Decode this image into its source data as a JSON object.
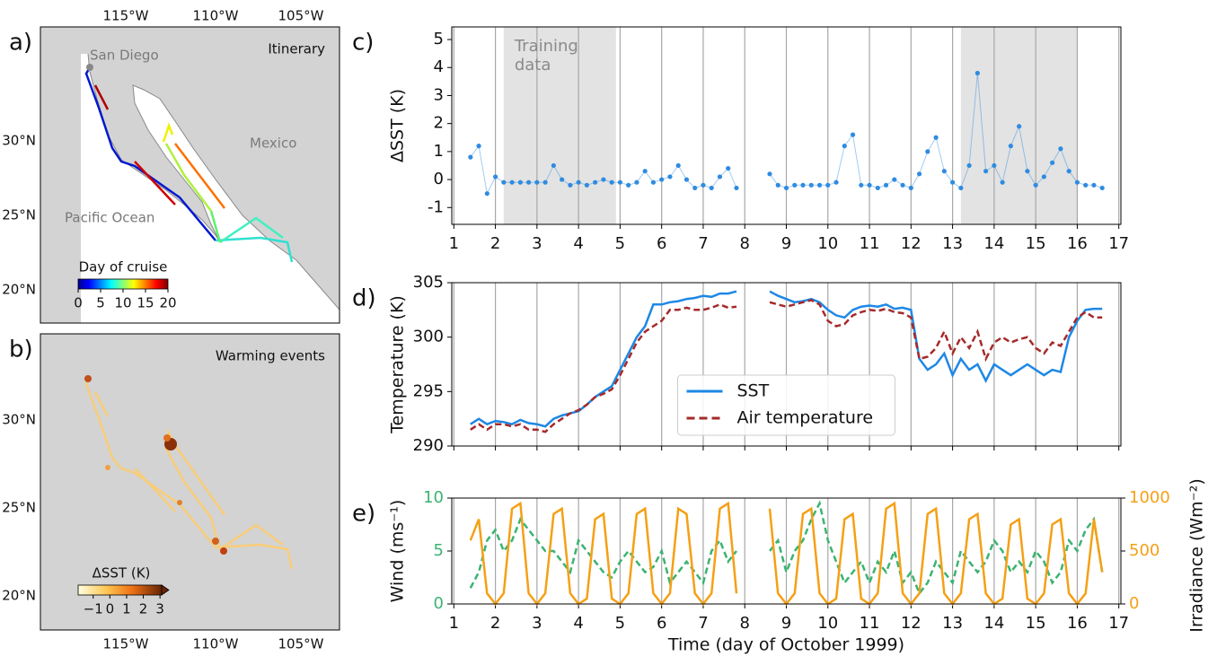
{
  "maps": [
    {
      "panel_label": "a)",
      "title": "Itinerary",
      "places": [
        "San Diego",
        "Mexico",
        "Pacific Ocean"
      ],
      "colorbar_label": "Day of cruise",
      "colorbar_lim": [
        0,
        20
      ],
      "colorbar_ticks": [
        0,
        5,
        10,
        15,
        20
      ],
      "lon_labels": [
        "115°W",
        "110°W",
        "105°W"
      ],
      "lat_labels": [
        "30°N",
        "25°N",
        "20°N"
      ]
    },
    {
      "panel_label": "b)",
      "title": "Warming events",
      "colorbar_label": "ΔSST (K)",
      "colorbar_lim": [
        -1.9,
        3.1
      ],
      "colorbar_ticks": [
        {
          "value": -1,
          "label": "−1"
        },
        0,
        1,
        2,
        3
      ],
      "lon_labels": [
        "115°W",
        "110°W",
        "105°W"
      ],
      "lat_labels": [
        "30°N",
        "25°N",
        "20°N"
      ]
    }
  ],
  "chart_data": [
    {
      "type": "scatter",
      "panel_label": "c)",
      "y_label": "ΔSST (K)",
      "connect": true,
      "grid": "x",
      "show_xtick_labels": true,
      "xlim": [
        0.95,
        17.05
      ],
      "xticks": [
        1,
        2,
        3,
        4,
        5,
        6,
        7,
        8,
        9,
        10,
        11,
        12,
        13,
        14,
        15,
        16,
        17
      ],
      "ylim": [
        -1.6,
        5.45
      ],
      "yticks": [
        -1,
        0,
        1,
        2,
        3,
        4,
        5
      ],
      "shaded_spans": [
        [
          2.2,
          4.9
        ],
        [
          13.2,
          16
        ]
      ],
      "annotation_lines": [
        "Training",
        "data"
      ],
      "x": [
        1.4,
        1.6,
        1.8,
        2.0,
        2.2,
        2.4,
        2.6,
        2.8,
        3.0,
        3.2,
        3.4,
        3.6,
        3.8,
        4.0,
        4.2,
        4.4,
        4.6,
        4.8,
        5.0,
        5.2,
        5.4,
        5.6,
        5.8,
        6.0,
        6.2,
        6.4,
        6.6,
        6.8,
        7.0,
        7.2,
        7.4,
        7.6,
        7.8,
        8.2,
        8.6,
        8.8,
        9.0,
        9.2,
        9.4,
        9.6,
        9.8,
        10.0,
        10.2,
        10.4,
        10.6,
        10.8,
        11.0,
        11.2,
        11.4,
        11.6,
        11.8,
        12.0,
        12.2,
        12.4,
        12.6,
        12.8,
        13.0,
        13.2,
        13.4,
        13.6,
        13.8,
        14.0,
        14.2,
        14.4,
        14.6,
        14.8,
        15.0,
        15.2,
        15.4,
        15.6,
        15.8,
        16.0,
        16.2,
        16.4,
        16.6
      ],
      "series": [
        {
          "name": "ΔSST",
          "color": "#2f8be0",
          "values": [
            0.8,
            1.2,
            -0.5,
            0.1,
            -0.1,
            -0.1,
            -0.1,
            -0.1,
            -0.1,
            -0.1,
            0.5,
            0.0,
            -0.2,
            -0.1,
            -0.2,
            -0.1,
            0.0,
            -0.1,
            -0.1,
            -0.2,
            -0.1,
            0.3,
            -0.1,
            0.0,
            0.1,
            0.5,
            0.0,
            -0.3,
            -0.2,
            -0.3,
            0.1,
            0.4,
            -0.3,
            null,
            0.2,
            -0.2,
            -0.3,
            -0.2,
            -0.2,
            -0.2,
            -0.2,
            -0.2,
            -0.1,
            1.2,
            1.6,
            -0.2,
            -0.2,
            -0.3,
            -0.2,
            0.0,
            -0.2,
            -0.3,
            0.2,
            1.0,
            1.5,
            0.3,
            -0.1,
            -0.3,
            0.5,
            3.8,
            0.3,
            0.5,
            -0.1,
            1.2,
            1.9,
            0.3,
            -0.2,
            0.1,
            0.6,
            1.1,
            0.3,
            -0.1,
            -0.2,
            -0.2,
            -0.3
          ]
        }
      ]
    },
    {
      "type": "line",
      "panel_label": "d)",
      "y_label": "Temperature (K)",
      "grid": "x",
      "show_xtick_labels": false,
      "legend": "lower center",
      "xlim": [
        0.95,
        17.05
      ],
      "xticks": [
        1,
        2,
        3,
        4,
        5,
        6,
        7,
        8,
        9,
        10,
        11,
        12,
        13,
        14,
        15,
        16,
        17
      ],
      "ylim": [
        290,
        305
      ],
      "yticks": [
        290,
        295,
        300,
        305
      ],
      "x": [
        1.4,
        1.6,
        1.8,
        2.0,
        2.2,
        2.4,
        2.6,
        2.8,
        3.0,
        3.2,
        3.4,
        3.6,
        3.8,
        4.0,
        4.2,
        4.4,
        4.6,
        4.8,
        5.0,
        5.2,
        5.4,
        5.6,
        5.8,
        6.0,
        6.2,
        6.4,
        6.6,
        6.8,
        7.0,
        7.2,
        7.4,
        7.6,
        7.8,
        8.2,
        8.6,
        8.8,
        9.0,
        9.2,
        9.4,
        9.6,
        9.8,
        10.0,
        10.2,
        10.4,
        10.6,
        10.8,
        11.0,
        11.2,
        11.4,
        11.6,
        11.8,
        12.0,
        12.2,
        12.4,
        12.6,
        12.8,
        13.0,
        13.2,
        13.4,
        13.6,
        13.8,
        14.0,
        14.2,
        14.4,
        14.6,
        14.8,
        15.0,
        15.2,
        15.4,
        15.6,
        15.8,
        16.0,
        16.2,
        16.4,
        16.6
      ],
      "series": [
        {
          "name": "SST",
          "color": "#1e88e5",
          "dashed": false,
          "values": [
            292,
            292.5,
            292,
            292.3,
            292.2,
            292,
            292.4,
            292.1,
            292,
            291.8,
            292.5,
            292.8,
            293,
            293.2,
            293.8,
            294.5,
            295,
            295.5,
            297,
            298.5,
            300,
            301,
            303,
            303,
            303.2,
            303.3,
            303.5,
            303.6,
            303.8,
            303.7,
            304,
            304,
            304.2,
            null,
            304.2,
            303.8,
            303.5,
            303.2,
            303.3,
            303.5,
            303.2,
            302.5,
            302,
            301.8,
            302.5,
            302.8,
            302.9,
            302.8,
            303,
            302.6,
            302.7,
            302.5,
            298,
            297,
            297.5,
            298.5,
            296.5,
            298,
            297,
            297.5,
            296,
            297.5,
            297,
            296.5,
            297,
            297.5,
            297,
            296.5,
            297,
            296.8,
            300,
            301.5,
            302.5,
            302.6,
            302.6
          ]
        },
        {
          "name": "Air temperature",
          "color": "#a52a2a",
          "dashed": true,
          "values": [
            291.5,
            292,
            291.5,
            292,
            292,
            291.8,
            292,
            291.5,
            291.5,
            291.3,
            292,
            292.5,
            293,
            293.3,
            293.8,
            294.5,
            294.8,
            295.2,
            296.5,
            298,
            299.5,
            300.5,
            301,
            301.5,
            302.5,
            302.5,
            302.7,
            302.5,
            302.5,
            302.7,
            303,
            302.7,
            302.8,
            null,
            303.2,
            303,
            302.8,
            303,
            303.2,
            303.4,
            303,
            301.5,
            301,
            301.2,
            302,
            302.3,
            302.5,
            302.4,
            302.6,
            302.3,
            302.2,
            301.8,
            298,
            298.2,
            299,
            300.5,
            298.5,
            300,
            299,
            300.5,
            298,
            299.5,
            300,
            299.5,
            299.8,
            300,
            299,
            298.5,
            299.5,
            299.2,
            300.5,
            301.8,
            302.3,
            301.8,
            301.8
          ]
        }
      ]
    },
    {
      "type": "line",
      "panel_label": "e)",
      "y_label": "Wind (ms⁻¹)",
      "y2_label": "Irradiance (Wm⁻²)",
      "x_label": "Time (day of October 1999)",
      "grid": "x",
      "show_xtick_labels": true,
      "xlim": [
        0.95,
        17.05
      ],
      "xticks": [
        1,
        2,
        3,
        4,
        5,
        6,
        7,
        8,
        9,
        10,
        11,
        12,
        13,
        14,
        15,
        16,
        17
      ],
      "ylim": [
        0,
        10
      ],
      "yticks": [
        0,
        5,
        10
      ],
      "y2lim": [
        0,
        1000
      ],
      "y2ticks": [
        0,
        500,
        1000
      ],
      "x": [
        1.4,
        1.6,
        1.8,
        2.0,
        2.2,
        2.4,
        2.6,
        2.8,
        3.0,
        3.2,
        3.4,
        3.6,
        3.8,
        4.0,
        4.2,
        4.4,
        4.6,
        4.8,
        5.0,
        5.2,
        5.4,
        5.6,
        5.8,
        6.0,
        6.2,
        6.4,
        6.6,
        6.8,
        7.0,
        7.2,
        7.4,
        7.6,
        7.8,
        8.2,
        8.6,
        8.8,
        9.0,
        9.2,
        9.4,
        9.6,
        9.8,
        10.0,
        10.2,
        10.4,
        10.6,
        10.8,
        11.0,
        11.2,
        11.4,
        11.6,
        11.8,
        12.0,
        12.2,
        12.4,
        12.6,
        12.8,
        13.0,
        13.2,
        13.4,
        13.6,
        13.8,
        14.0,
        14.2,
        14.4,
        14.6,
        14.8,
        15.0,
        15.2,
        15.4,
        15.6,
        15.8,
        16.0,
        16.2,
        16.4,
        16.6
      ],
      "series": [
        {
          "name": "Wind",
          "color": "#3cb371",
          "dashed": true,
          "axis": "y",
          "values": [
            1.5,
            3,
            6,
            7,
            5,
            6,
            8,
            7,
            6,
            5,
            5,
            4,
            3,
            6,
            5,
            4,
            3,
            2.5,
            4,
            5,
            4,
            3,
            3.5,
            5,
            2,
            3,
            4,
            3,
            2,
            5,
            6,
            4,
            5,
            null,
            5,
            6,
            3,
            5,
            6,
            8,
            9.5,
            6,
            4,
            2,
            3,
            4,
            2,
            4,
            3,
            5,
            2,
            3,
            1,
            2,
            4,
            3,
            2,
            5,
            4,
            3,
            4,
            6,
            5,
            3,
            4,
            3,
            5,
            4,
            2,
            3,
            6,
            5,
            7,
            8,
            3
          ]
        },
        {
          "name": "Irradiance",
          "color": "#f5a015",
          "dashed": false,
          "axis": "y2",
          "values": [
            600,
            800,
            100,
            0,
            100,
            900,
            950,
            100,
            0,
            100,
            850,
            900,
            100,
            0,
            50,
            800,
            850,
            50,
            0,
            100,
            850,
            900,
            100,
            0,
            100,
            900,
            850,
            100,
            0,
            100,
            900,
            950,
            100,
            null,
            900,
            100,
            0,
            100,
            850,
            900,
            100,
            0,
            50,
            800,
            850,
            50,
            0,
            100,
            900,
            950,
            100,
            0,
            100,
            850,
            900,
            100,
            0,
            100,
            800,
            850,
            100,
            0,
            50,
            750,
            800,
            50,
            0,
            100,
            750,
            800,
            100,
            0,
            100,
            800,
            300
          ]
        }
      ]
    }
  ]
}
